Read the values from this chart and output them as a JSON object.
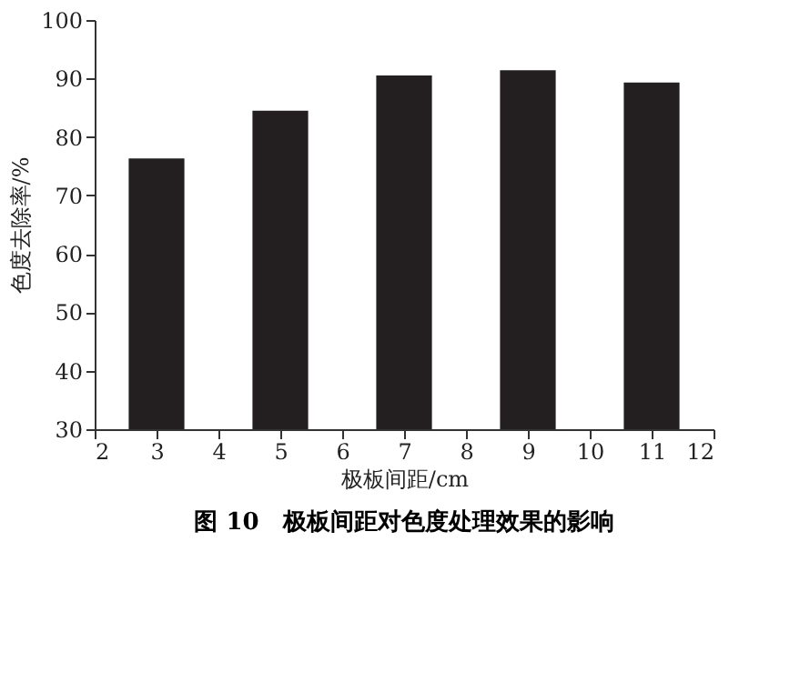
{
  "chart_data": {
    "type": "bar",
    "title": "图 10　极板间距对色度处理效果的影响",
    "xlabel": "极板间距/cm",
    "ylabel": "色度去除率/%",
    "x": [
      3,
      5,
      7,
      9,
      11
    ],
    "values": [
      76.3,
      84.5,
      90.5,
      91.4,
      89.3
    ],
    "color": "#231f20",
    "xlim": [
      2,
      12
    ],
    "xticks": [
      2,
      3,
      4,
      5,
      6,
      7,
      8,
      9,
      10,
      11,
      12
    ],
    "ylim": [
      30,
      100
    ],
    "yticks": [
      30,
      40,
      50,
      60,
      70,
      80,
      90,
      100
    ],
    "grid": false
  }
}
